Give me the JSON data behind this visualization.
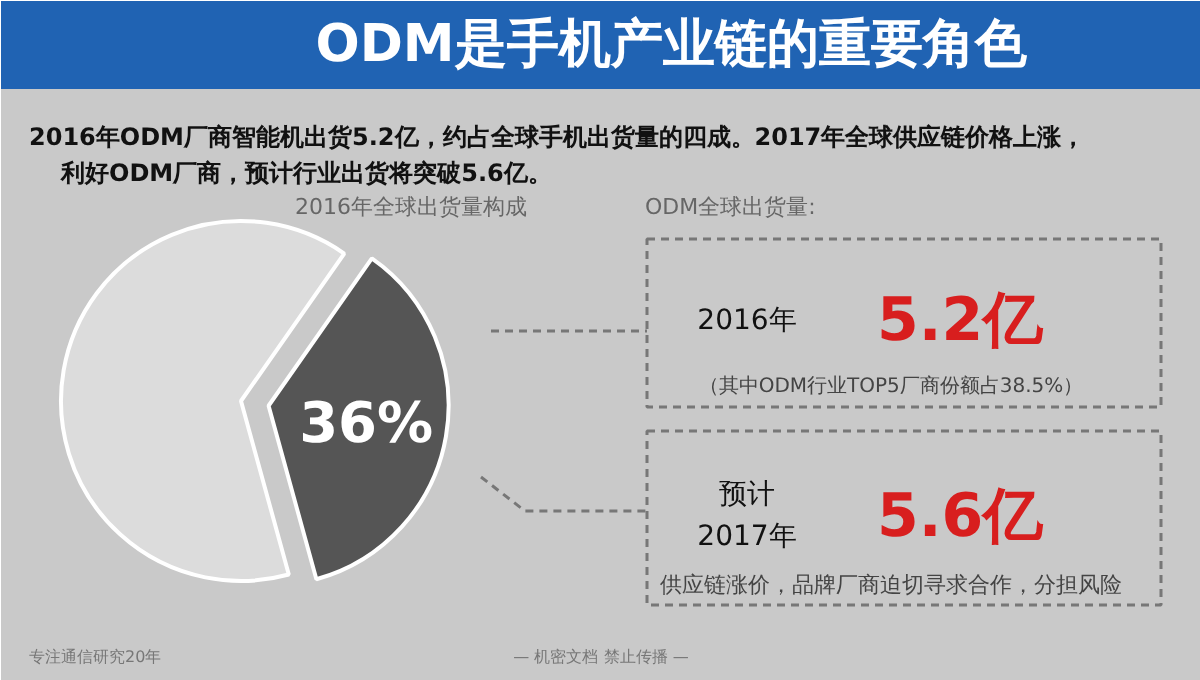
{
  "chart_data": {
    "type": "pie",
    "title": "ODM是手机产业链的重要角色",
    "subtitle": "2016年全球出货量构成",
    "categories": [
      null,
      null
    ],
    "values": [
      36,
      64
    ],
    "colors": [
      "#555555",
      "#dcdcdc"
    ],
    "value_labels": [
      "36%",
      null
    ],
    "annotations": [
      "2016年ODM厂商智能机出货5.2亿，约占全球手机出货量的四成。2017年全球供应链价格上涨，",
      "利好ODM厂商，预计行业出货将突破5.6亿。",
      "ODM全球出货量:",
      "2016年",
      "5.2亿",
      "（其中ODM行业TOP5厂商份额占38.5%）",
      "预计",
      "2017年",
      "5.6亿",
      "供应链涨价，品牌厂商迫切寻求合作，分担风险",
      "专注通信研究20年",
      "— 机密文档 禁止传播 —"
    ]
  }
}
